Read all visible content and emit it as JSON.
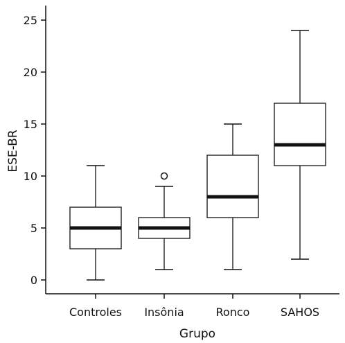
{
  "chart_data": {
    "type": "boxplot",
    "xlabel": "Grupo",
    "ylabel": "ESE-BR",
    "ylim": [
      -1.3,
      26.3
    ],
    "yticks": [
      0,
      5,
      10,
      15,
      20,
      25
    ],
    "grid": false,
    "legend": "none",
    "categories": [
      "Controles",
      "Insônia",
      "Ronco",
      "SAHOS"
    ],
    "boxes": [
      {
        "category": "Controles",
        "whisker_low": 0,
        "q1": 3,
        "median": 5,
        "q3": 7,
        "whisker_high": 11,
        "outliers": []
      },
      {
        "category": "Insônia",
        "whisker_low": 1,
        "q1": 4,
        "median": 5,
        "q3": 6,
        "whisker_high": 9,
        "outliers": [
          10
        ]
      },
      {
        "category": "Ronco",
        "whisker_low": 1,
        "q1": 6,
        "median": 8,
        "q3": 12,
        "whisker_high": 15,
        "outliers": []
      },
      {
        "category": "SAHOS",
        "whisker_low": 2,
        "q1": 11,
        "median": 13,
        "q3": 17,
        "whisker_high": 24,
        "outliers": []
      }
    ],
    "colors": {
      "box_fill": "#ffffff",
      "stroke": "#111111",
      "median": "#111111"
    }
  }
}
